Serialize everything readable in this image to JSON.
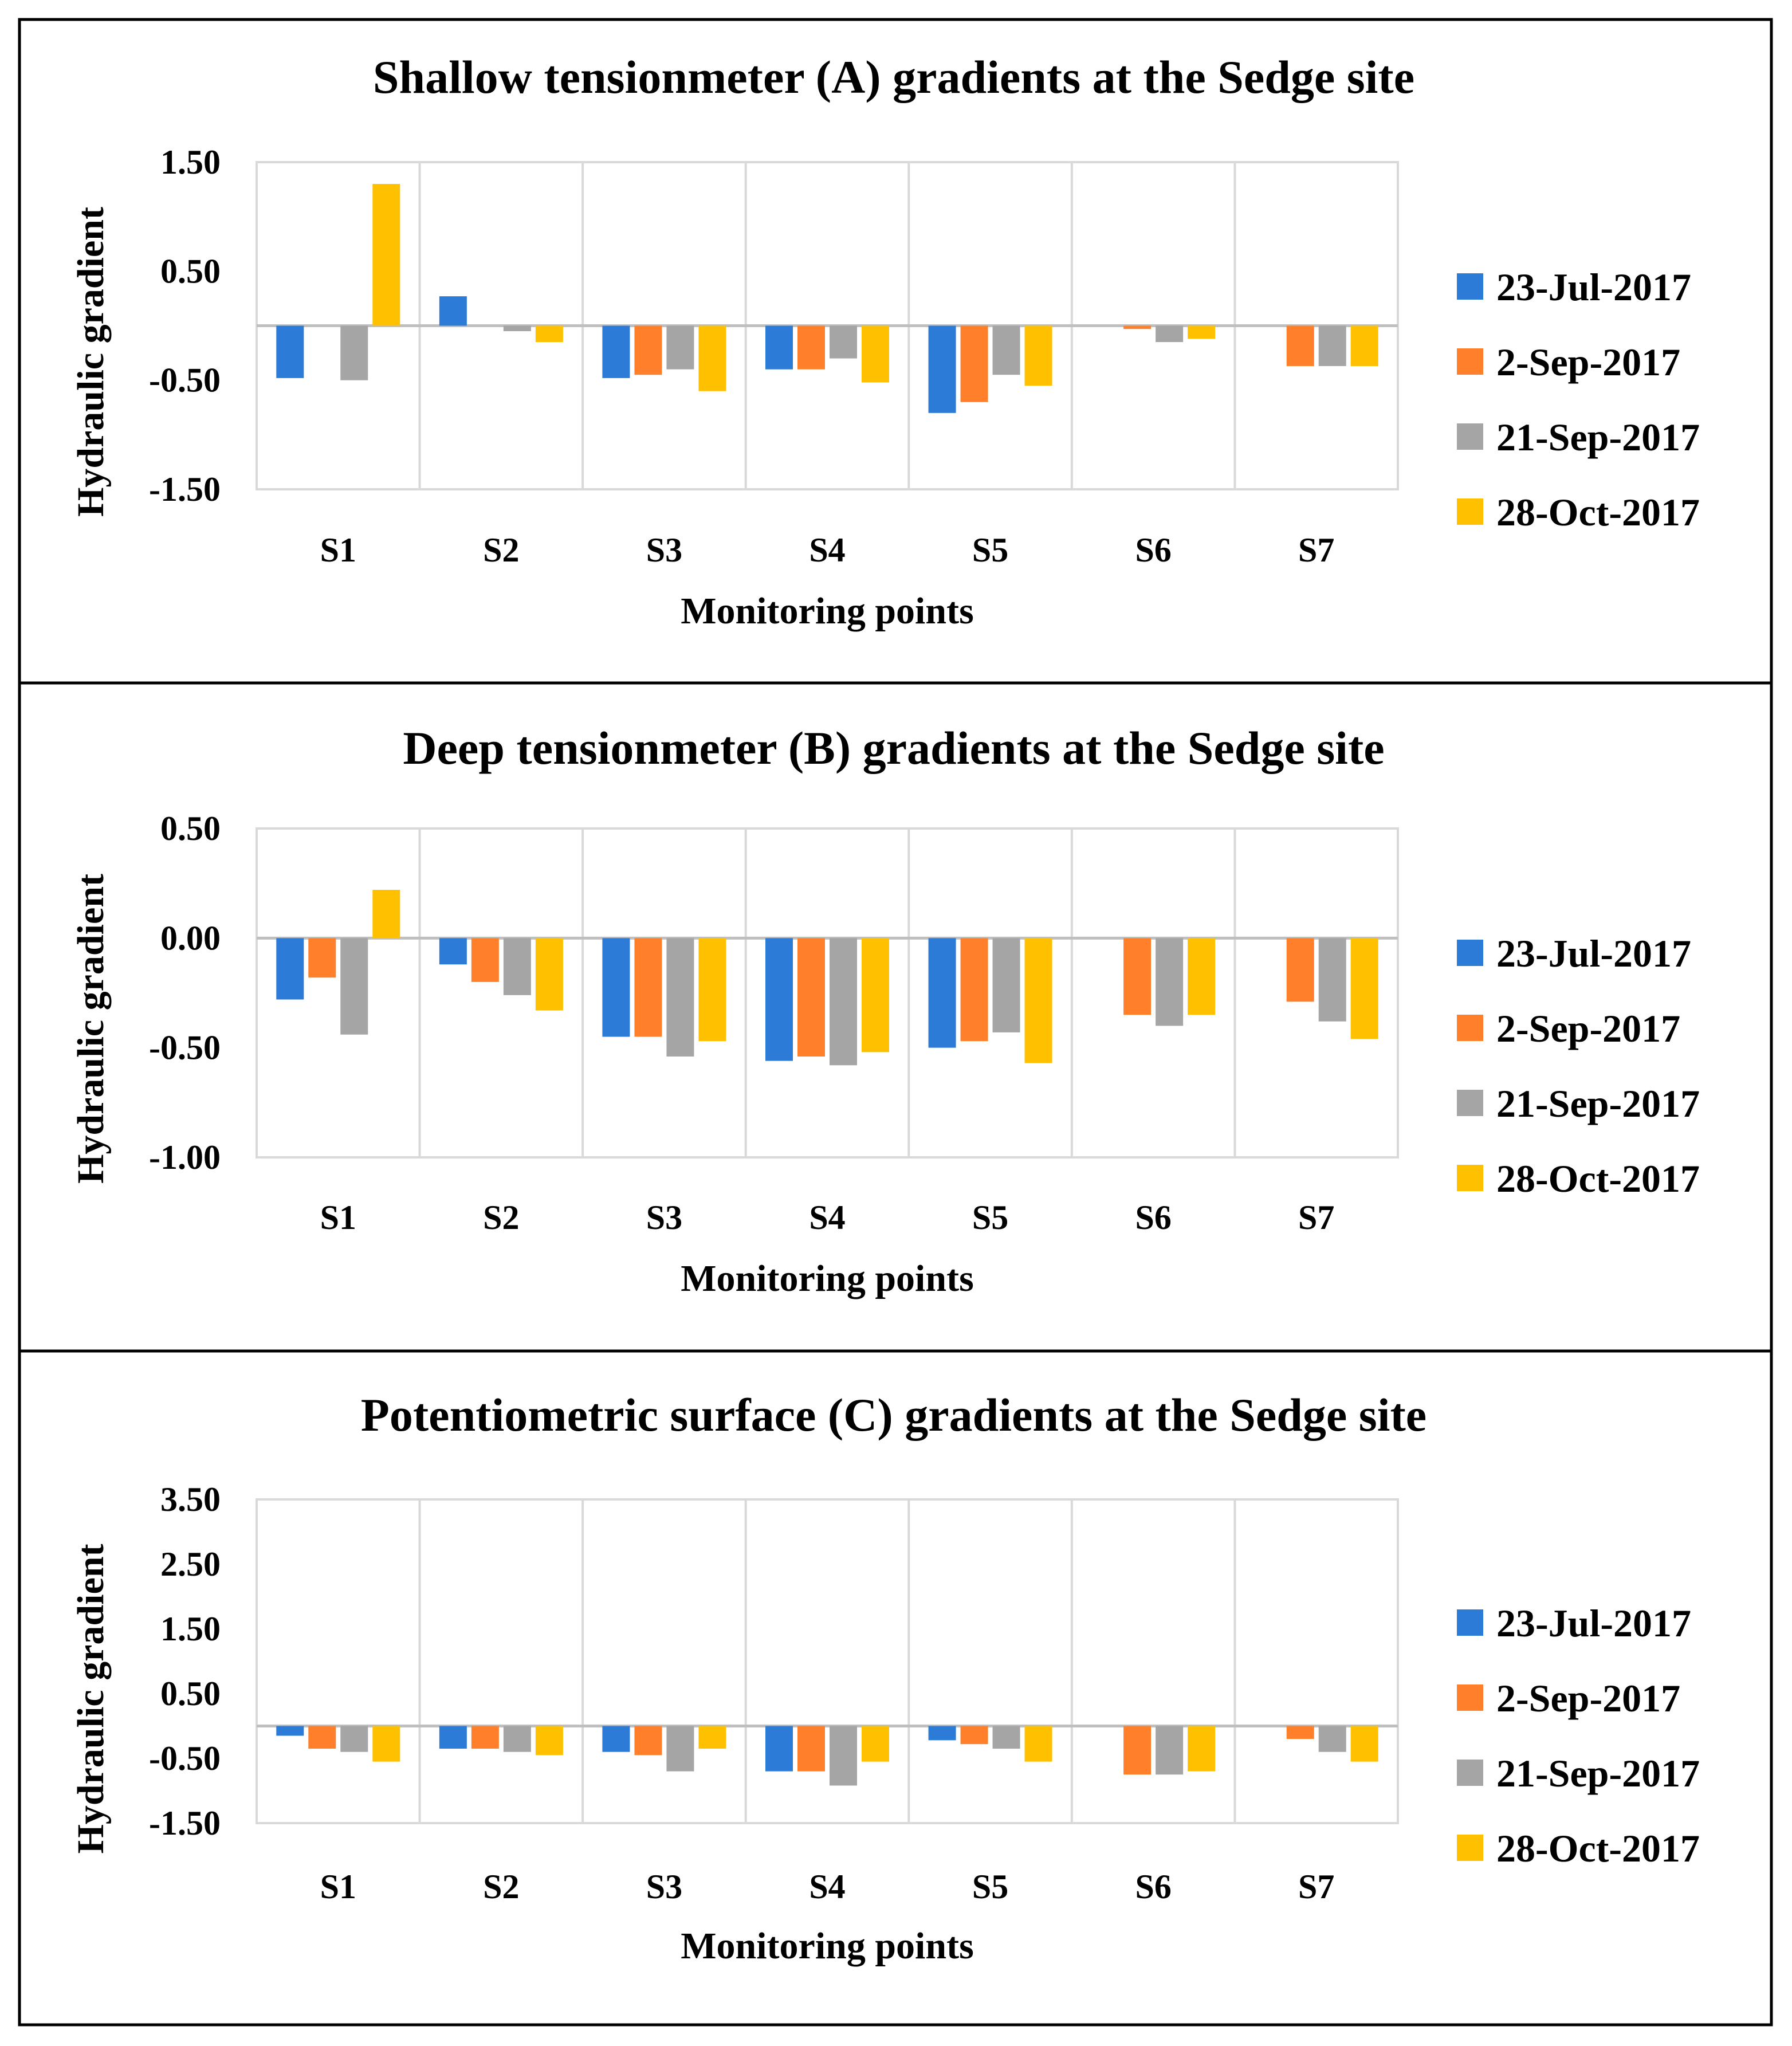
{
  "chart_data": [
    {
      "type": "bar",
      "title": "Shallow tensionmeter (A) gradients at the Sedge site",
      "xlabel": "Monitoring points",
      "ylabel": "Hydraulic gradient",
      "categories": [
        "S1",
        "S2",
        "S3",
        "S4",
        "S5",
        "S6",
        "S7"
      ],
      "ylim": [
        -1.5,
        1.5
      ],
      "yticks": [
        1.5,
        0.5,
        -0.5,
        -1.5
      ],
      "ytick_labels": [
        "1.50",
        "0.50",
        "-0.50",
        "-1.50"
      ],
      "grid": "vertical",
      "legend": "right",
      "series": [
        {
          "name": "23-Jul-2017",
          "color": "#2c7bd6",
          "values": [
            -0.48,
            0.27,
            -0.48,
            -0.4,
            -0.8,
            0.0,
            0.0
          ]
        },
        {
          "name": "2-Sep-2017",
          "color": "#ff7f2a",
          "values": [
            0.0,
            0.0,
            -0.45,
            -0.4,
            -0.7,
            -0.03,
            -0.37
          ]
        },
        {
          "name": "21-Sep-2017",
          "color": "#a5a5a5",
          "values": [
            -0.5,
            -0.05,
            -0.4,
            -0.3,
            -0.45,
            -0.15,
            -0.37
          ]
        },
        {
          "name": "28-Oct-2017",
          "color": "#ffc000",
          "values": [
            1.3,
            -0.15,
            -0.6,
            -0.52,
            -0.55,
            -0.12,
            -0.37
          ]
        }
      ]
    },
    {
      "type": "bar",
      "title": "Deep tensionmeter (B) gradients at the Sedge site",
      "xlabel": "Monitoring points",
      "ylabel": "Hydraulic gradient",
      "categories": [
        "S1",
        "S2",
        "S3",
        "S4",
        "S5",
        "S6",
        "S7"
      ],
      "ylim": [
        -1.0,
        0.5
      ],
      "yticks": [
        0.5,
        0.0,
        -0.5,
        -1.0
      ],
      "ytick_labels": [
        "0.50",
        "0.00",
        "-0.50",
        "-1.00"
      ],
      "grid": "vertical",
      "legend": "right",
      "series": [
        {
          "name": "23-Jul-2017",
          "color": "#2c7bd6",
          "values": [
            -0.28,
            -0.12,
            -0.45,
            -0.56,
            -0.5,
            0.0,
            0.0
          ]
        },
        {
          "name": "2-Sep-2017",
          "color": "#ff7f2a",
          "values": [
            -0.18,
            -0.2,
            -0.45,
            -0.54,
            -0.47,
            -0.35,
            -0.29
          ]
        },
        {
          "name": "21-Sep-2017",
          "color": "#a5a5a5",
          "values": [
            -0.44,
            -0.26,
            -0.54,
            -0.58,
            -0.43,
            -0.4,
            -0.38
          ]
        },
        {
          "name": "28-Oct-2017",
          "color": "#ffc000",
          "values": [
            0.22,
            -0.33,
            -0.47,
            -0.52,
            -0.57,
            -0.35,
            -0.46
          ]
        }
      ]
    },
    {
      "type": "bar",
      "title": "Potentiometric surface (C) gradients at the Sedge site",
      "xlabel": "Monitoring points",
      "ylabel": "Hydraulic gradient",
      "categories": [
        "S1",
        "S2",
        "S3",
        "S4",
        "S5",
        "S6",
        "S7"
      ],
      "ylim": [
        -1.5,
        3.5
      ],
      "yticks": [
        3.5,
        2.5,
        1.5,
        0.5,
        -0.5,
        -1.5
      ],
      "ytick_labels": [
        "3.50",
        "2.50",
        "1.50",
        "0.50",
        "-0.50",
        "-1.50"
      ],
      "grid": "vertical",
      "legend": "right",
      "series": [
        {
          "name": "23-Jul-2017",
          "color": "#2c7bd6",
          "values": [
            -0.15,
            -0.35,
            -0.4,
            -0.7,
            -0.22,
            0.0,
            0.0
          ]
        },
        {
          "name": "2-Sep-2017",
          "color": "#ff7f2a",
          "values": [
            -0.35,
            -0.35,
            -0.45,
            -0.7,
            -0.28,
            -0.75,
            -0.2
          ]
        },
        {
          "name": "21-Sep-2017",
          "color": "#a5a5a5",
          "values": [
            -0.4,
            -0.4,
            -0.7,
            -0.92,
            -0.35,
            -0.75,
            -0.4
          ]
        },
        {
          "name": "28-Oct-2017",
          "color": "#ffc000",
          "values": [
            -0.55,
            -0.45,
            -0.35,
            -0.55,
            -0.55,
            -0.7,
            -0.55
          ]
        }
      ]
    }
  ]
}
